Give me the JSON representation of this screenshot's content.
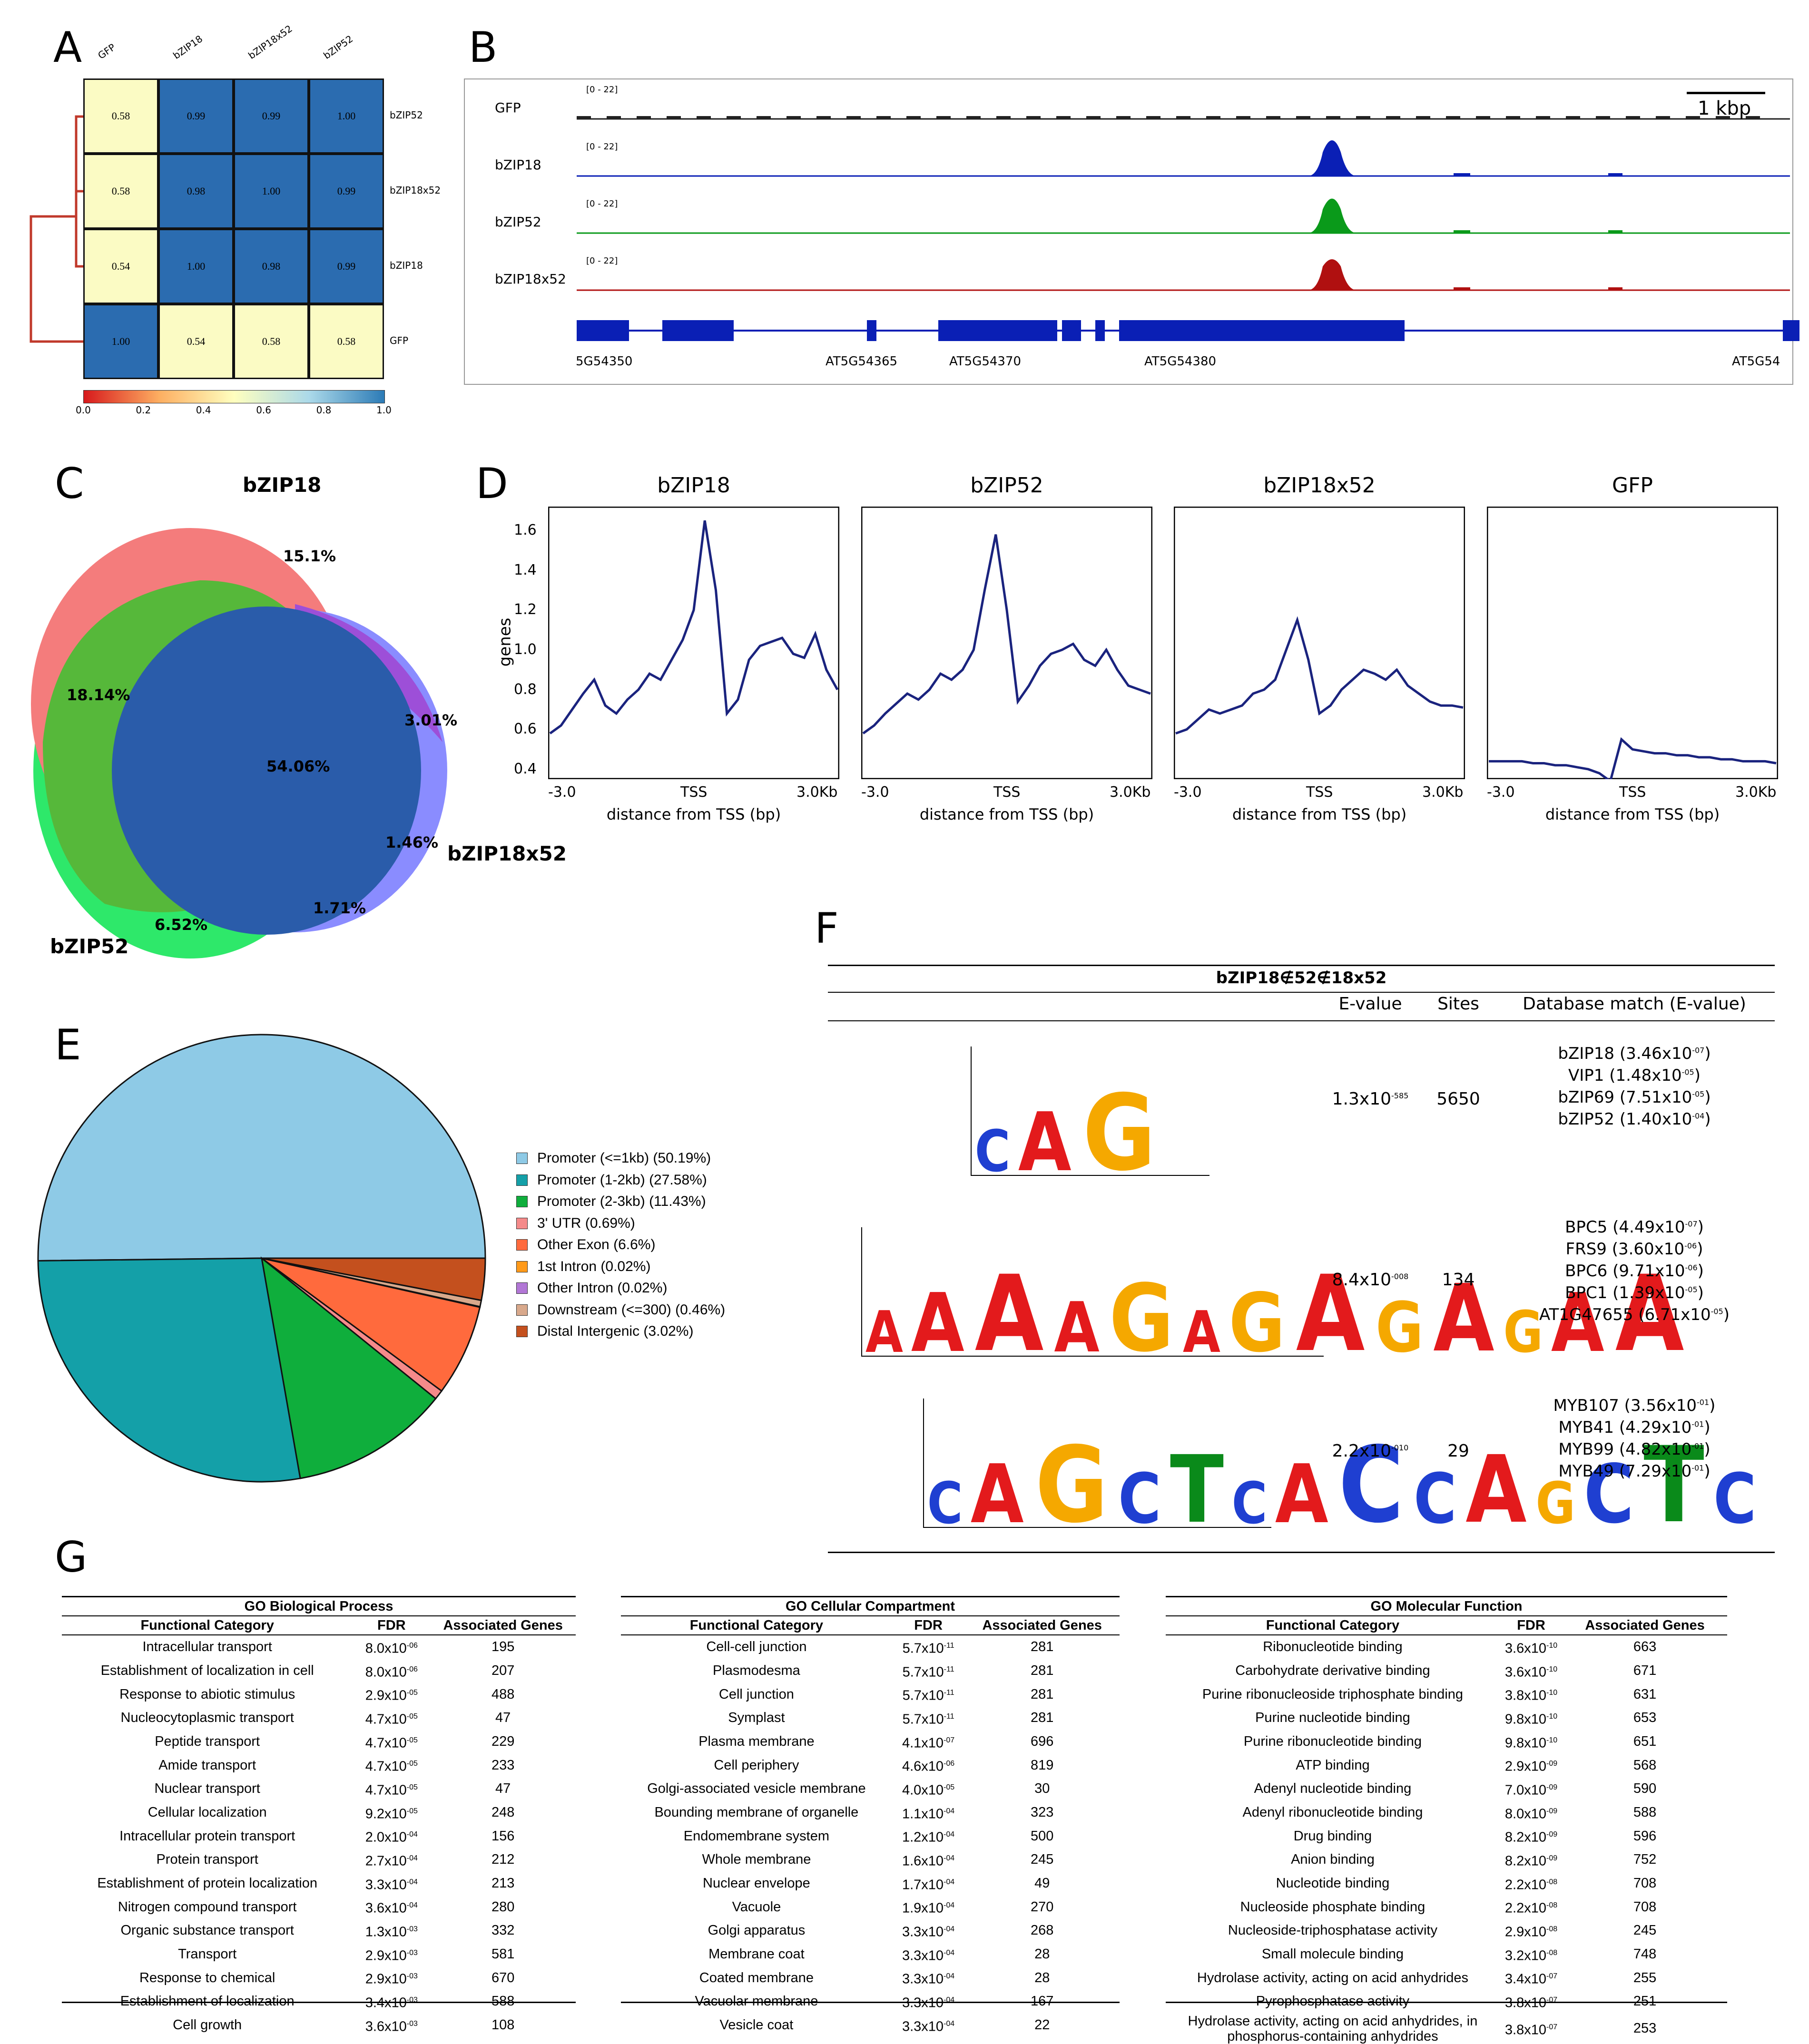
{
  "panels": {
    "A": "A",
    "B": "B",
    "C": "C",
    "D": "D",
    "E": "E",
    "F": "F",
    "G": "G"
  },
  "panelA": {
    "col_labels": [
      "GFP",
      "bZIP18",
      "bZIP18x52",
      "bZIP52"
    ],
    "row_labels": [
      "bZIP52",
      "bZIP18x52",
      "bZIP18",
      "GFP"
    ],
    "values": [
      [
        "0.58",
        "0.99",
        "0.99",
        "1.00"
      ],
      [
        "0.58",
        "0.98",
        "1.00",
        "0.99"
      ],
      [
        "0.54",
        "1.00",
        "0.98",
        "0.99"
      ],
      [
        "1.00",
        "0.54",
        "0.58",
        "0.58"
      ]
    ],
    "colorbar_ticks": [
      "0.0",
      "0.2",
      "0.4",
      "0.6",
      "0.8",
      "1.0"
    ],
    "colors": {
      "high": "#2b6cb0",
      "low": "#fbfbc4",
      "dendro": "#c0392b"
    }
  },
  "panelB": {
    "scale_label": "1 kbp",
    "tracks": [
      {
        "name": "GFP",
        "range": "[0 - 22]",
        "color": "#222222"
      },
      {
        "name": "bZIP18",
        "range": "[0 - 22]",
        "color": "#0a1fb5"
      },
      {
        "name": "bZIP52",
        "range": "[0 - 22]",
        "color": "#0a9a1a"
      },
      {
        "name": "bZIP18x52",
        "range": "[0 - 22]",
        "color": "#b01010"
      }
    ],
    "genes": [
      "5G54350",
      "AT5G54365",
      "AT5G54370",
      "AT5G54380",
      "AT5G54"
    ]
  },
  "panelC": {
    "sets": {
      "bzip18": "bZIP18",
      "bzip52": "bZIP52",
      "bzip18x52": "bZIP18x52"
    },
    "percentages": {
      "only18": "15.1%",
      "18and52": "18.14%",
      "all": "54.06%",
      "18and18x52": "3.01%",
      "only18x52": "1.46%",
      "52and18x52": "1.71%",
      "only52": "6.52%"
    },
    "colors": {
      "bzip18": "#f47c7c",
      "bzip52": "#2ee86a",
      "bzip18x52": "#8080ff",
      "center": "#2a5caa",
      "overlap18_52": "#56b83a",
      "overlap18_18x52": "#9d4fd8"
    }
  },
  "panelD": {
    "ylabel": "genes",
    "yticks": [
      "1.6",
      "1.4",
      "1.2",
      "1.0",
      "0.8",
      "0.6",
      "0.4"
    ],
    "xticks": [
      "-3.0",
      "TSS",
      "3.0Kb"
    ],
    "xlabel": "distance from TSS (bp)",
    "line_color": "#1a237e",
    "plots": [
      {
        "title": "bZIP18",
        "values": [
          0.58,
          0.62,
          0.7,
          0.78,
          0.85,
          0.72,
          0.68,
          0.75,
          0.8,
          0.88,
          0.85,
          0.95,
          1.05,
          1.2,
          1.65,
          1.3,
          0.68,
          0.75,
          0.95,
          1.02,
          1.04,
          1.06,
          0.98,
          0.96,
          1.08,
          0.9,
          0.8
        ]
      },
      {
        "title": "bZIP52",
        "values": [
          0.58,
          0.62,
          0.68,
          0.73,
          0.78,
          0.75,
          0.8,
          0.88,
          0.85,
          0.9,
          1.0,
          1.3,
          1.58,
          1.2,
          0.74,
          0.82,
          0.92,
          0.98,
          1.0,
          1.03,
          0.95,
          0.92,
          1.0,
          0.9,
          0.82,
          0.8,
          0.78
        ]
      },
      {
        "title": "bZIP18x52",
        "values": [
          0.58,
          0.6,
          0.65,
          0.7,
          0.68,
          0.7,
          0.72,
          0.78,
          0.8,
          0.85,
          1.0,
          1.15,
          0.95,
          0.68,
          0.72,
          0.8,
          0.85,
          0.9,
          0.88,
          0.85,
          0.9,
          0.82,
          0.78,
          0.74,
          0.72,
          0.72,
          0.71
        ]
      },
      {
        "title": "GFP",
        "values": [
          0.44,
          0.44,
          0.44,
          0.44,
          0.43,
          0.43,
          0.42,
          0.42,
          0.41,
          0.4,
          0.38,
          0.34,
          0.55,
          0.5,
          0.49,
          0.48,
          0.48,
          0.47,
          0.47,
          0.46,
          0.46,
          0.45,
          0.45,
          0.44,
          0.44,
          0.44,
          0.43
        ]
      }
    ]
  },
  "chart_data": {
    "type": "pie",
    "categories": [
      "Promoter (<=1kb) (50.19%)",
      "Promoter (1-2kb) (27.58%)",
      "Promoter (2-3kb) (11.43%)",
      "3' UTR (0.69%)",
      "Other Exon (6.6%)",
      "1st Intron (0.02%)",
      "Other Intron (0.02%)",
      "Downstream (<=300) (0.46%)",
      "Distal Intergenic (3.02%)"
    ],
    "values": [
      50.19,
      27.58,
      11.43,
      0.69,
      6.6,
      0.02,
      0.02,
      0.46,
      3.02
    ],
    "colors": [
      "#8ecae6",
      "#14a0a8",
      "#0fae3c",
      "#f58a8a",
      "#ff6a3d",
      "#ff9a1a",
      "#b277d6",
      "#d9a98c",
      "#c4501e"
    ]
  },
  "panelF": {
    "title": "bZIP18∉52∉18x52",
    "headers": {
      "evalue": "E-value",
      "sites": "Sites",
      "db": "Database match (E-value)"
    },
    "motifs": [
      {
        "evalue_base": "1.3x10",
        "evalue_exp": "-585",
        "sites": "5650",
        "matches": [
          {
            "name": "bZIP18 (3.46x10",
            "exp": "-07"
          },
          {
            "name": "VIP1 (1.48x10",
            "exp": "-05"
          },
          {
            "name": "bZIP69 (7.51x10",
            "exp": "-05"
          },
          {
            "name": "bZIP52 (1.40x10",
            "exp": "-04"
          }
        ],
        "letters": "CAG"
      },
      {
        "evalue_base": "8.4x10",
        "evalue_exp": "-008",
        "sites": "134",
        "matches": [
          {
            "name": "BPC5 (4.49x10",
            "exp": "-07"
          },
          {
            "name": "FRS9 (3.60x10",
            "exp": "-06"
          },
          {
            "name": "BPC6 (9.71x10",
            "exp": "-06"
          },
          {
            "name": "BPC1 (1.39x10",
            "exp": "-05"
          },
          {
            "name": "AT1G47655 (6.71x10",
            "exp": "-05"
          }
        ],
        "letters": "AAAAGAGAGAGAA"
      },
      {
        "evalue_base": "2.2x10",
        "evalue_exp": "-010",
        "sites": "29",
        "matches": [
          {
            "name": "MYB107 (3.56x10",
            "exp": "-01"
          },
          {
            "name": "MYB41 (4.29x10",
            "exp": "-01"
          },
          {
            "name": "MYB99 (4.82x10",
            "exp": "-01"
          },
          {
            "name": "MYB49 (7.29x10",
            "exp": "-01"
          }
        ],
        "letters": "CAGCTCACCAGCTC"
      }
    ]
  },
  "panelG": {
    "col_headers": {
      "cat": "Functional Category",
      "fdr": "FDR",
      "genes": "Associated Genes"
    },
    "tables": [
      {
        "title": "GO Biological Process",
        "rows": [
          [
            "Intracellular transport",
            "8.0x10",
            "-06",
            "195"
          ],
          [
            "Establishment of localization in cell",
            "8.0x10",
            "-06",
            "207"
          ],
          [
            "Response to abiotic stimulus",
            "2.9x10",
            "-05",
            "488"
          ],
          [
            "Nucleocytoplasmic transport",
            "4.7x10",
            "-05",
            "47"
          ],
          [
            "Peptide transport",
            "4.7x10",
            "-05",
            "229"
          ],
          [
            "Amide transport",
            "4.7x10",
            "-05",
            "233"
          ],
          [
            "Nuclear transport",
            "4.7x10",
            "-05",
            "47"
          ],
          [
            "Cellular localization",
            "9.2x10",
            "-05",
            "248"
          ],
          [
            "Intracellular protein transport",
            "2.0x10",
            "-04",
            "156"
          ],
          [
            "Protein transport",
            "2.7x10",
            "-04",
            "212"
          ],
          [
            "Establishment of protein localization",
            "3.3x10",
            "-04",
            "213"
          ],
          [
            "Nitrogen compound transport",
            "3.6x10",
            "-04",
            "280"
          ],
          [
            "Organic substance transport",
            "1.3x10",
            "-03",
            "332"
          ],
          [
            "Transport",
            "2.9x10",
            "-03",
            "581"
          ],
          [
            "Response to chemical",
            "2.9x10",
            "-03",
            "670"
          ],
          [
            "Establishment of localization",
            "3.4x10",
            "-03",
            "588"
          ],
          [
            "Cell growth",
            "3.6x10",
            "-03",
            "108"
          ]
        ]
      },
      {
        "title": "GO Cellular Compartment",
        "rows": [
          [
            "Cell-cell junction",
            "5.7x10",
            "-11",
            "281"
          ],
          [
            "Plasmodesma",
            "5.7x10",
            "-11",
            "281"
          ],
          [
            "Cell junction",
            "5.7x10",
            "-11",
            "281"
          ],
          [
            "Symplast",
            "5.7x10",
            "-11",
            "281"
          ],
          [
            "Plasma membrane",
            "4.1x10",
            "-07",
            "696"
          ],
          [
            "Cell periphery",
            "4.6x10",
            "-06",
            "819"
          ],
          [
            "Golgi-associated vesicle membrane",
            "4.0x10",
            "-05",
            "30"
          ],
          [
            "Bounding membrane of organelle",
            "1.1x10",
            "-04",
            "323"
          ],
          [
            "Endomembrane system",
            "1.2x10",
            "-04",
            "500"
          ],
          [
            "Whole membrane",
            "1.6x10",
            "-04",
            "245"
          ],
          [
            "Nuclear envelope",
            "1.7x10",
            "-04",
            "49"
          ],
          [
            "Vacuole",
            "1.9x10",
            "-04",
            "270"
          ],
          [
            "Golgi apparatus",
            "3.3x10",
            "-04",
            "268"
          ],
          [
            "Membrane coat",
            "3.3x10",
            "-04",
            "28"
          ],
          [
            "Coated membrane",
            "3.3x10",
            "-04",
            "28"
          ],
          [
            "Vacuolar membrane",
            "3.3x10",
            "-04",
            "167"
          ],
          [
            "Vesicle coat",
            "3.3x10",
            "-04",
            "22"
          ]
        ]
      },
      {
        "title": "GO Molecular Function",
        "rows": [
          [
            "Ribonucleotide binding",
            "3.6x10",
            "-10",
            "663"
          ],
          [
            "Carbohydrate derivative binding",
            "3.6x10",
            "-10",
            "671"
          ],
          [
            "Purine ribonucleoside triphosphate binding",
            "3.8x10",
            "-10",
            "631"
          ],
          [
            "Purine nucleotide binding",
            "9.8x10",
            "-10",
            "653"
          ],
          [
            "Purine ribonucleotide binding",
            "9.8x10",
            "-10",
            "651"
          ],
          [
            "ATP binding",
            "2.9x10",
            "-09",
            "568"
          ],
          [
            "Adenyl nucleotide binding",
            "7.0x10",
            "-09",
            "590"
          ],
          [
            "Adenyl ribonucleotide binding",
            "8.0x10",
            "-09",
            "588"
          ],
          [
            "Drug binding",
            "8.2x10",
            "-09",
            "596"
          ],
          [
            "Anion binding",
            "8.2x10",
            "-09",
            "752"
          ],
          [
            "Nucleotide binding",
            "2.2x10",
            "-08",
            "708"
          ],
          [
            "Nucleoside phosphate binding",
            "2.2x10",
            "-08",
            "708"
          ],
          [
            "Nucleoside-triphosphatase activity",
            "2.9x10",
            "-08",
            "245"
          ],
          [
            "Small molecule binding",
            "3.2x10",
            "-08",
            "748"
          ],
          [
            "Hydrolase activity, acting on acid anhydrides",
            "3.4x10",
            "-07",
            "255"
          ],
          [
            "Pyrophosphatase activity",
            "3.8x10",
            "-07",
            "251"
          ],
          [
            "Hydrolase activity, acting on acid anhydrides, in phosphorus-containing anhydrides",
            "3.8x10",
            "-07",
            "253"
          ]
        ]
      }
    ]
  }
}
